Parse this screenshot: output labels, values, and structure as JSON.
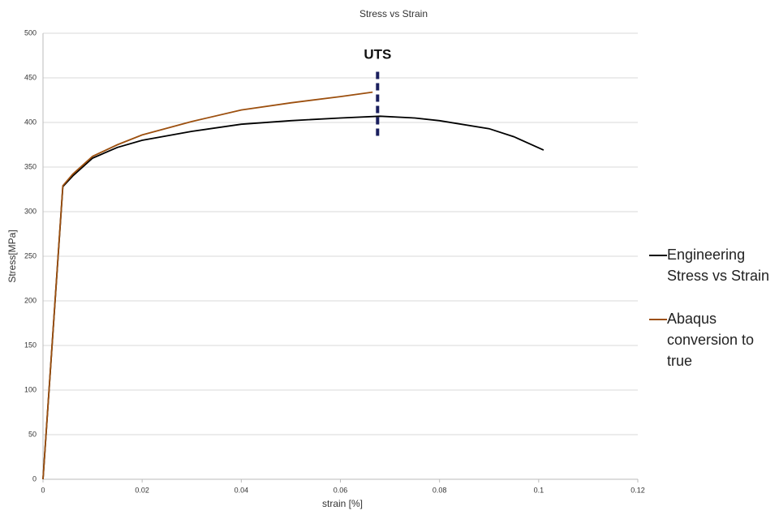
{
  "chart_data": {
    "type": "line",
    "title": "Stress vs Strain",
    "x_label": "strain [%]",
    "y_label": "Stress[MPa]",
    "xlim": [
      0,
      0.12
    ],
    "xticks": [
      0,
      0.02,
      0.04,
      0.06,
      0.08,
      0.1,
      0.12
    ],
    "ylim": [
      0,
      500
    ],
    "yticks": [
      0,
      50,
      100,
      150,
      200,
      250,
      300,
      350,
      400,
      450,
      500
    ],
    "grid": true,
    "series": [
      {
        "name": "Engineering Stress vs Strain",
        "color": "#000000",
        "x": [
          0,
          0.004,
          0.006,
          0.01,
          0.015,
          0.02,
          0.03,
          0.04,
          0.05,
          0.06,
          0.068,
          0.075,
          0.08,
          0.09,
          0.095,
          0.101
        ],
        "values": [
          0,
          328,
          340,
          360,
          372,
          380,
          390,
          398,
          402,
          405,
          407,
          405,
          402,
          393,
          384,
          369
        ]
      },
      {
        "name": "Abaqus conversion to true",
        "color": "#9c4f0e",
        "x": [
          0,
          0.004,
          0.006,
          0.01,
          0.015,
          0.02,
          0.03,
          0.04,
          0.05,
          0.06,
          0.0665
        ],
        "values": [
          0,
          329,
          342,
          362,
          375,
          386,
          401,
          414,
          422,
          429,
          434
        ]
      }
    ],
    "annotations": [
      {
        "text": "UTS",
        "x": 0.0675,
        "y": [
          385,
          460
        ],
        "color": "#1a1f5e"
      }
    ]
  }
}
